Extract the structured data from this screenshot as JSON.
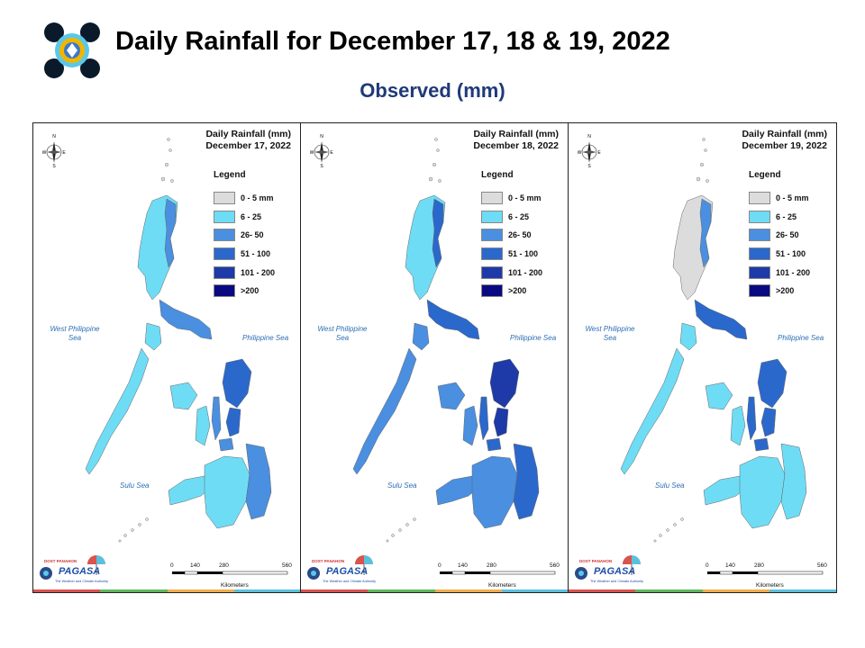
{
  "header": {
    "title": "Daily Rainfall for December 17, 18 & 19, 2022",
    "subtitle": "Observed (mm)"
  },
  "legend": {
    "title": "Legend",
    "items": [
      {
        "label": "0 - 5 mm",
        "color": "#dcdcdc"
      },
      {
        "label": "6 - 25",
        "color": "#6fdcf5"
      },
      {
        "label": "26- 50",
        "color": "#4a8fe0"
      },
      {
        "label": "51 - 100",
        "color": "#2b68cc"
      },
      {
        "label": "101 - 200",
        "color": "#1e3aa8"
      },
      {
        "label": ">200",
        "color": "#0a0a80"
      }
    ]
  },
  "labels": {
    "west_sea": "West Philippine Sea",
    "phil_sea": "Philippine Sea",
    "sulu_sea": "Sulu Sea",
    "compass_n": "N",
    "compass_s": "S",
    "compass_e": "E",
    "compass_w": "W",
    "scale_ticks": [
      "0",
      "140",
      "280",
      "560"
    ],
    "scale_unit": "Kilometers",
    "logo_brand": "PAGASA",
    "logo_top": "DOST PANAHON",
    "logo_tagline": "The Weather and Climate Authority"
  },
  "maps": [
    {
      "title_line1": "Daily Rainfall (mm)",
      "title_line2": "December 17, 2022",
      "intensity": [
        1,
        2,
        2,
        1,
        3,
        2
      ]
    },
    {
      "title_line1": "Daily Rainfall (mm)",
      "title_line2": "December 18, 2022",
      "intensity": [
        1,
        3,
        3,
        2,
        4,
        3
      ]
    },
    {
      "title_line1": "Daily Rainfall (mm)",
      "title_line2": "December 19, 2022",
      "intensity": [
        0,
        2,
        3,
        1,
        3,
        1
      ]
    }
  ],
  "stripe_colors": [
    "#d9534f",
    "#5cb85c",
    "#f0ad4e",
    "#5bc0de"
  ]
}
